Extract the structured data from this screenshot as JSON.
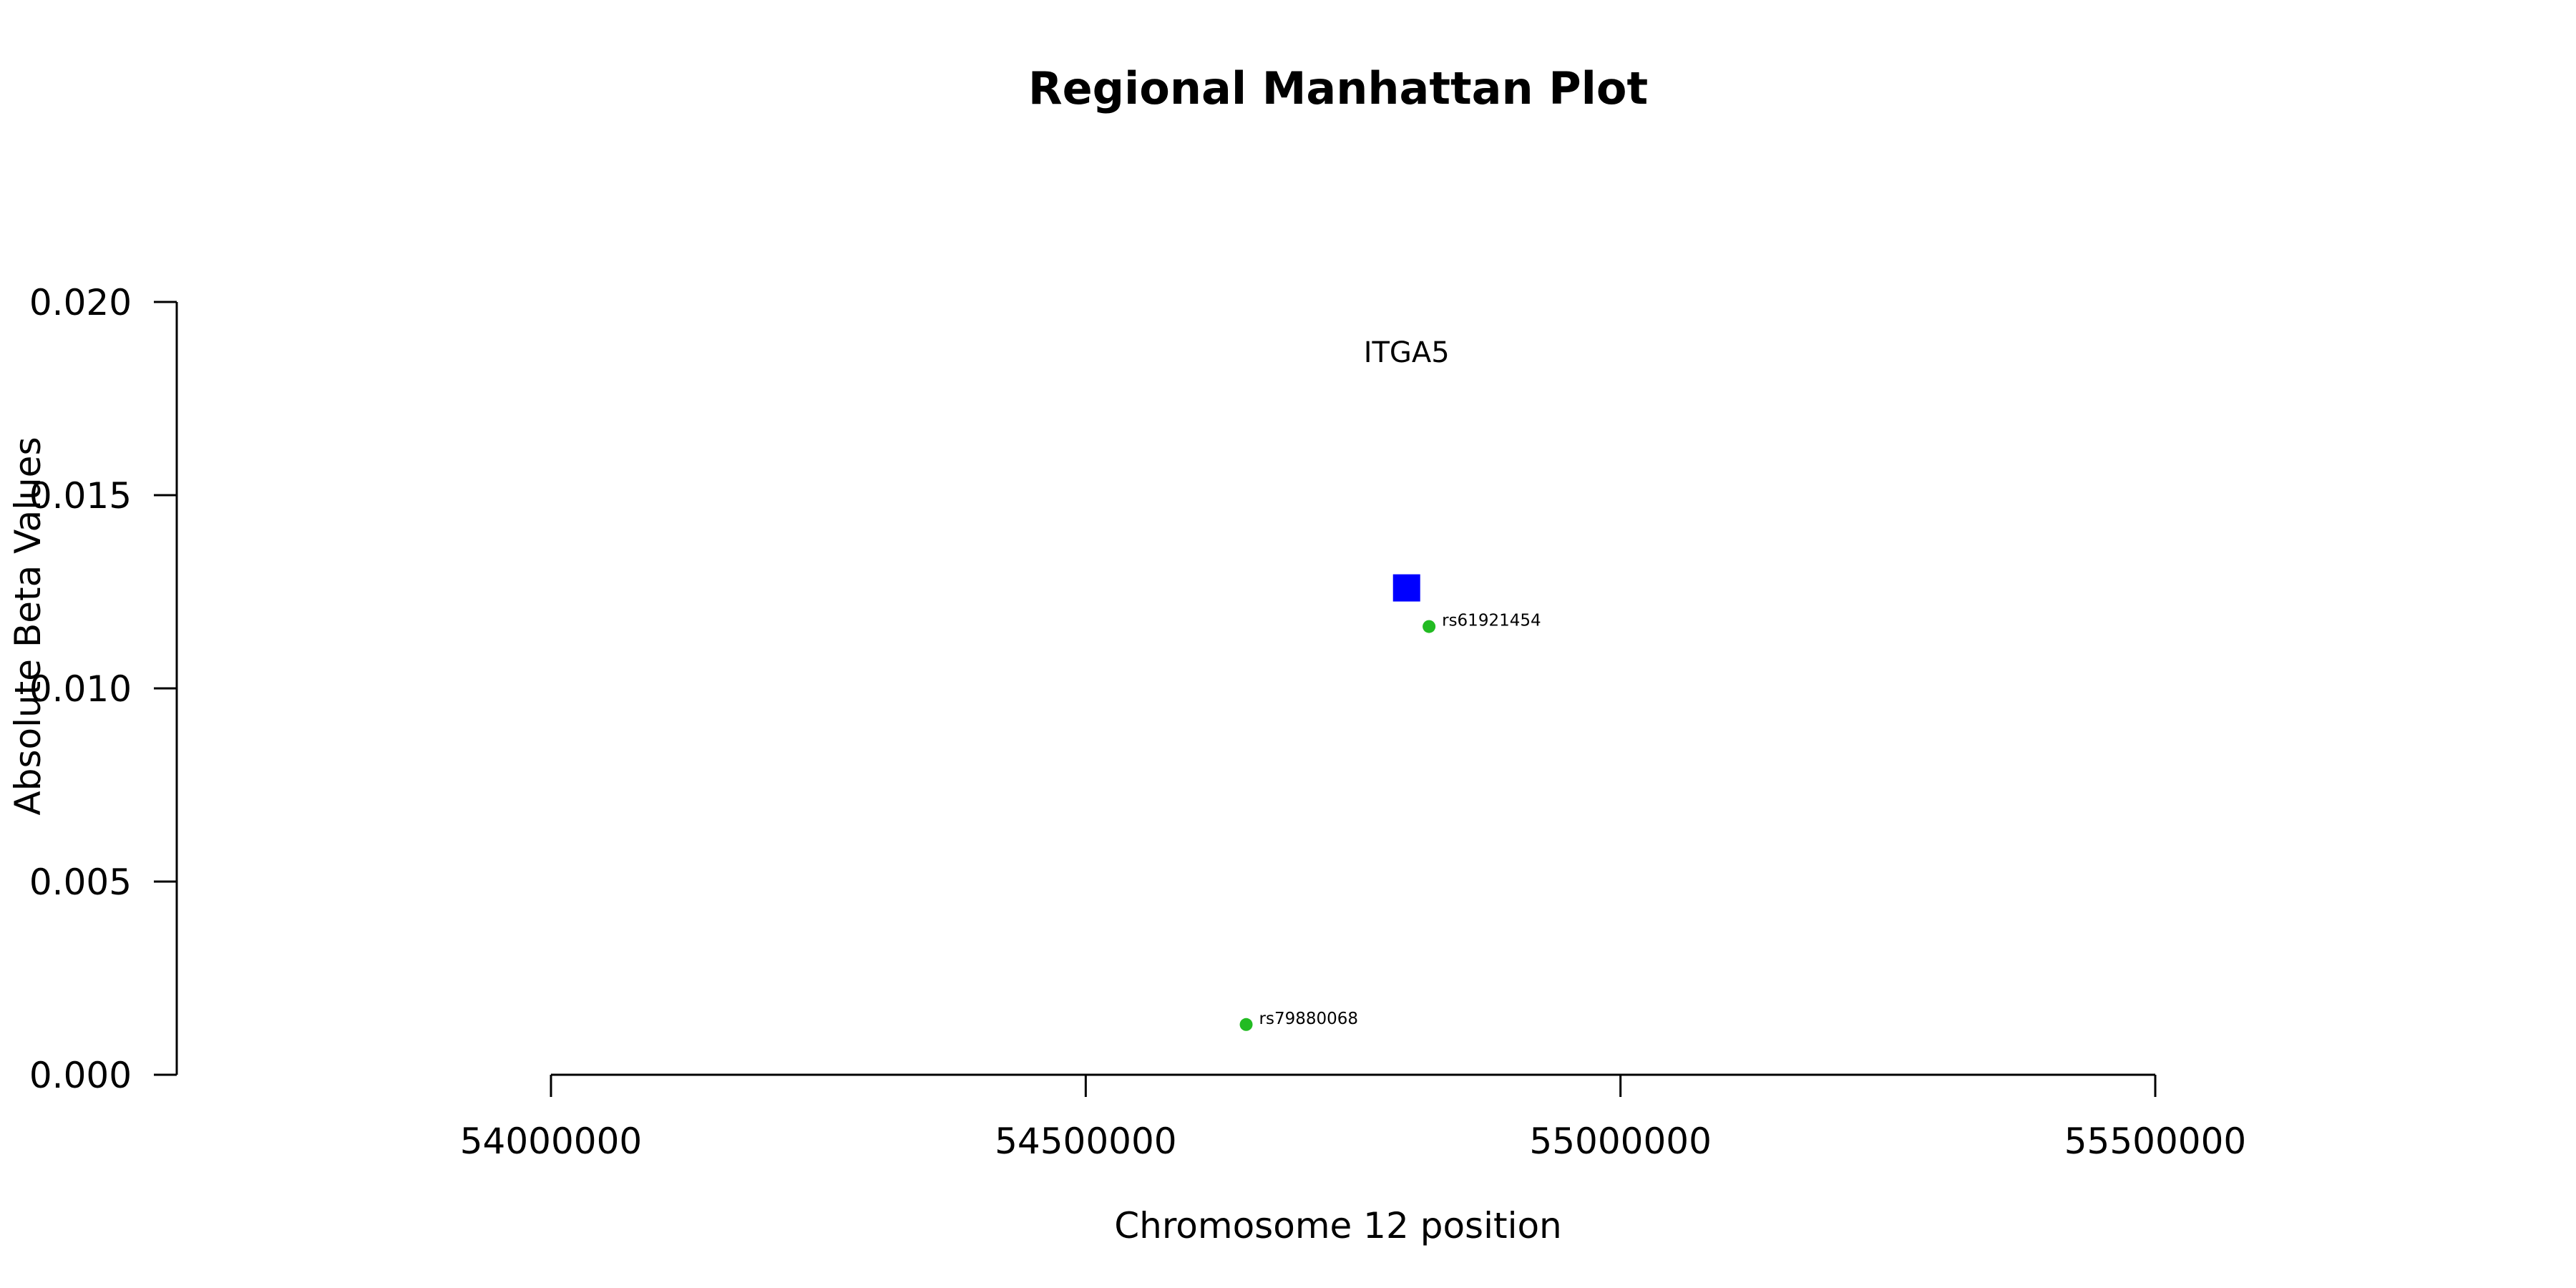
{
  "chart_data": {
    "type": "scatter",
    "title": "Regional Manhattan Plot",
    "xlabel": "Chromosome 12 position",
    "ylabel": "Absolute Beta Values",
    "xlim": [
      53700000,
      56000000
    ],
    "ylim": [
      0,
      0.02
    ],
    "x_ticks": [
      54000000,
      54500000,
      55000000,
      55500000
    ],
    "x_tick_labels": [
      "54000000",
      "54500000",
      "55000000",
      "55500000"
    ],
    "y_ticks": [
      0,
      0.005,
      0.01,
      0.015,
      0.02
    ],
    "y_tick_labels": [
      "0.000",
      "0.005",
      "0.010",
      "0.015",
      "0.020"
    ],
    "grid": false,
    "gene": {
      "name": "ITGA5",
      "x": 54800000,
      "y": 0.0126,
      "label_y": 0.0187,
      "color": "#0000ff",
      "marker": "square"
    },
    "snps": [
      {
        "name": "rs61921454",
        "x": 54821000,
        "y": 0.0116,
        "color": "#22bb22"
      },
      {
        "name": "rs79880068",
        "x": 54650000,
        "y": 0.0013,
        "color": "#22bb22"
      }
    ]
  }
}
